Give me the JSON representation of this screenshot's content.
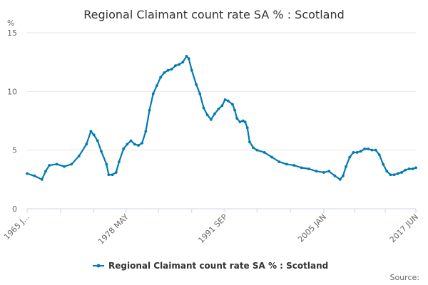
{
  "chart_data": {
    "type": "line",
    "title": "Regional Claimant count rate SA % : Scotland",
    "ylabel": "%",
    "xlabel": "",
    "ylim": [
      0,
      15
    ],
    "yticks": [
      0,
      5,
      10,
      15
    ],
    "xlim": [
      1965.0,
      2017.42
    ],
    "x_tick_labels": [
      {
        "label": "1965 J...",
        "x": 1965.0
      },
      {
        "label": "1978 MAY",
        "x": 1978.33
      },
      {
        "label": "1991 SEP",
        "x": 1991.67
      },
      {
        "label": "2005 JAN",
        "x": 2005.0
      },
      {
        "label": "2017 JUN",
        "x": 2017.42
      }
    ],
    "x_minor_ticks": [
      1965.0,
      1969.5,
      1974.0,
      1978.33,
      1982.7,
      1987.2,
      1991.67,
      1996.0,
      2000.5,
      2005.0,
      2009.2,
      2013.3,
      2017.42
    ],
    "series": [
      {
        "name": "Regional Claimant count rate SA % : Scotland",
        "color": "#007ab3",
        "points": [
          [
            1965.0,
            3.0
          ],
          [
            1966.0,
            2.8
          ],
          [
            1967.0,
            2.5
          ],
          [
            1967.5,
            3.2
          ],
          [
            1968.0,
            3.7
          ],
          [
            1969.0,
            3.8
          ],
          [
            1970.0,
            3.6
          ],
          [
            1971.0,
            3.8
          ],
          [
            1972.0,
            4.5
          ],
          [
            1973.0,
            5.5
          ],
          [
            1973.6,
            6.6
          ],
          [
            1974.0,
            6.3
          ],
          [
            1974.5,
            5.8
          ],
          [
            1975.0,
            4.9
          ],
          [
            1975.7,
            3.8
          ],
          [
            1976.0,
            2.9
          ],
          [
            1976.5,
            2.9
          ],
          [
            1977.0,
            3.1
          ],
          [
            1977.4,
            4.0
          ],
          [
            1978.0,
            5.1
          ],
          [
            1978.5,
            5.5
          ],
          [
            1979.0,
            5.8
          ],
          [
            1979.5,
            5.5
          ],
          [
            1980.0,
            5.4
          ],
          [
            1980.5,
            5.6
          ],
          [
            1981.0,
            6.6
          ],
          [
            1981.5,
            8.4
          ],
          [
            1982.0,
            9.8
          ],
          [
            1982.5,
            10.5
          ],
          [
            1983.0,
            11.2
          ],
          [
            1983.5,
            11.6
          ],
          [
            1984.0,
            11.8
          ],
          [
            1984.5,
            11.9
          ],
          [
            1985.0,
            12.2
          ],
          [
            1985.5,
            12.3
          ],
          [
            1986.0,
            12.5
          ],
          [
            1986.5,
            13.0
          ],
          [
            1986.8,
            12.8
          ],
          [
            1987.2,
            11.8
          ],
          [
            1987.8,
            10.6
          ],
          [
            1988.3,
            9.8
          ],
          [
            1988.8,
            8.6
          ],
          [
            1989.3,
            8.0
          ],
          [
            1989.8,
            7.6
          ],
          [
            1990.3,
            8.1
          ],
          [
            1990.8,
            8.5
          ],
          [
            1991.3,
            8.8
          ],
          [
            1991.7,
            9.3
          ],
          [
            1992.1,
            9.2
          ],
          [
            1992.7,
            8.9
          ],
          [
            1993.0,
            8.4
          ],
          [
            1993.3,
            7.7
          ],
          [
            1993.7,
            7.4
          ],
          [
            1994.1,
            7.5
          ],
          [
            1994.4,
            7.4
          ],
          [
            1994.7,
            6.9
          ],
          [
            1995.0,
            5.7
          ],
          [
            1995.5,
            5.2
          ],
          [
            1996.0,
            5.0
          ],
          [
            1997.0,
            4.8
          ],
          [
            1998.0,
            4.4
          ],
          [
            1999.0,
            4.0
          ],
          [
            2000.0,
            3.8
          ],
          [
            2001.0,
            3.7
          ],
          [
            2002.0,
            3.5
          ],
          [
            2003.0,
            3.4
          ],
          [
            2004.0,
            3.2
          ],
          [
            2005.0,
            3.1
          ],
          [
            2005.7,
            3.2
          ],
          [
            2006.5,
            2.8
          ],
          [
            2007.2,
            2.5
          ],
          [
            2007.6,
            2.8
          ],
          [
            2008.0,
            3.6
          ],
          [
            2008.5,
            4.4
          ],
          [
            2009.0,
            4.8
          ],
          [
            2009.5,
            4.8
          ],
          [
            2010.0,
            4.9
          ],
          [
            2010.5,
            5.1
          ],
          [
            2011.0,
            5.1
          ],
          [
            2011.5,
            5.0
          ],
          [
            2012.0,
            5.0
          ],
          [
            2012.5,
            4.6
          ],
          [
            2013.0,
            3.8
          ],
          [
            2013.5,
            3.2
          ],
          [
            2014.0,
            2.9
          ],
          [
            2014.5,
            2.9
          ],
          [
            2015.0,
            3.0
          ],
          [
            2015.5,
            3.1
          ],
          [
            2016.0,
            3.3
          ],
          [
            2016.5,
            3.4
          ],
          [
            2017.0,
            3.4
          ],
          [
            2017.42,
            3.5
          ]
        ]
      }
    ],
    "legend": {
      "label": "Regional Claimant count rate SA % : Scotland",
      "position": "bottom-center"
    },
    "source_label": "Source:"
  }
}
